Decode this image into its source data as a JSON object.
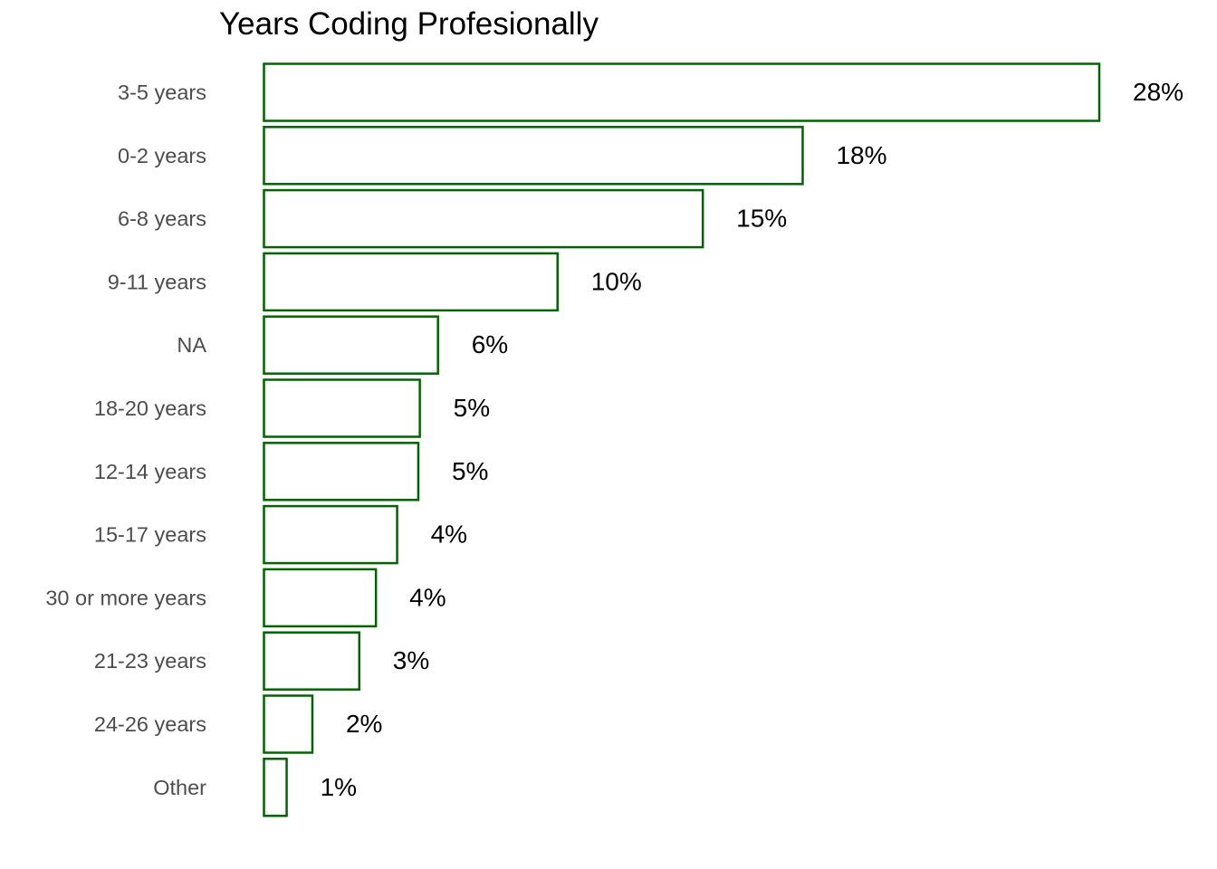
{
  "chart_data": {
    "type": "bar",
    "orientation": "horizontal",
    "title": "Years Coding Profesionally",
    "xlabel": "",
    "ylabel": "",
    "categories": [
      "3-5 years",
      "0-2 years",
      "6-8 years",
      "9-11 years",
      "NA",
      "18-20 years",
      "12-14 years",
      "15-17 years",
      "30 or more years",
      "21-23 years",
      "24-26 years",
      "Other"
    ],
    "values": [
      27.6,
      17.8,
      14.5,
      9.7,
      5.75,
      5.15,
      5.1,
      4.4,
      3.7,
      3.15,
      1.6,
      0.75
    ],
    "value_labels": [
      "28%",
      "18%",
      "15%",
      "10%",
      "6%",
      "5%",
      "5%",
      "4%",
      "4%",
      "3%",
      "2%",
      "1%"
    ],
    "xlim": [
      0,
      27.6
    ],
    "grid": false,
    "legend": "none",
    "bar_fill": "#ffffff",
    "bar_outline": "#006400"
  }
}
